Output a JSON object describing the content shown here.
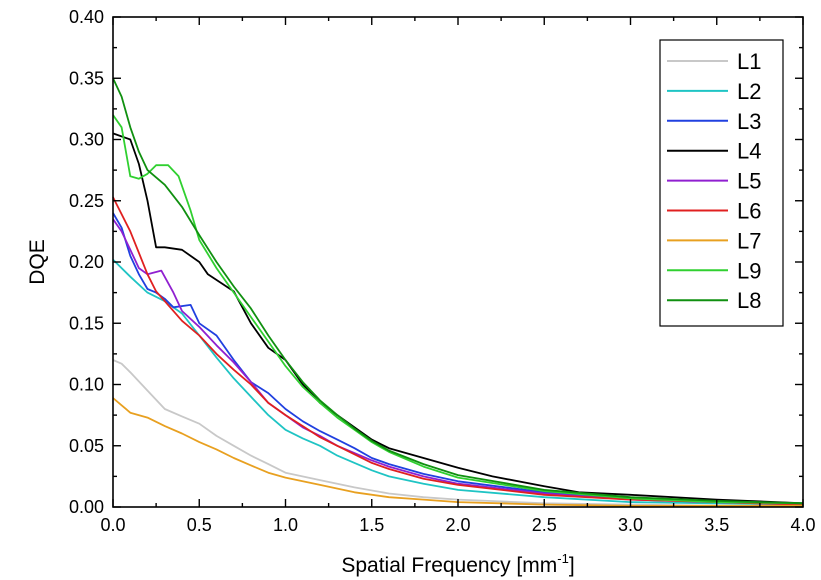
{
  "chart_data": {
    "type": "line",
    "title": "",
    "xlabel": "Spatial Frequency [mm",
    "xlabel_sup": "-1",
    "xlabel_end": "]",
    "ylabel": "DQE",
    "xlim": [
      0,
      4.0
    ],
    "ylim": [
      0,
      0.4
    ],
    "x_ticks": [
      "0.0",
      "0.5",
      "1.0",
      "1.5",
      "2.0",
      "2.5",
      "3.0",
      "3.5",
      "4.0"
    ],
    "y_ticks": [
      "0.00",
      "0.05",
      "0.10",
      "0.15",
      "0.20",
      "0.25",
      "0.30",
      "0.35",
      "0.40"
    ],
    "grid": false,
    "legend_position": "top-right",
    "series": [
      {
        "name": "L1",
        "color": "#c8c8c8",
        "points": [
          [
            0,
            0.12
          ],
          [
            0.05,
            0.117
          ],
          [
            0.1,
            0.11
          ],
          [
            0.2,
            0.095
          ],
          [
            0.3,
            0.08
          ],
          [
            0.4,
            0.074
          ],
          [
            0.5,
            0.068
          ],
          [
            0.6,
            0.058
          ],
          [
            0.7,
            0.05
          ],
          [
            0.8,
            0.042
          ],
          [
            0.9,
            0.035
          ],
          [
            1.0,
            0.028
          ],
          [
            1.2,
            0.022
          ],
          [
            1.4,
            0.016
          ],
          [
            1.6,
            0.011
          ],
          [
            1.8,
            0.008
          ],
          [
            2.0,
            0.006
          ],
          [
            2.5,
            0.003
          ],
          [
            3.0,
            0.002
          ],
          [
            3.5,
            0.001
          ],
          [
            4.0,
            0.001
          ]
        ]
      },
      {
        "name": "L2",
        "color": "#1fc4c4",
        "points": [
          [
            0,
            0.202
          ],
          [
            0.1,
            0.188
          ],
          [
            0.2,
            0.175
          ],
          [
            0.3,
            0.168
          ],
          [
            0.4,
            0.158
          ],
          [
            0.5,
            0.14
          ],
          [
            0.6,
            0.122
          ],
          [
            0.7,
            0.105
          ],
          [
            0.8,
            0.09
          ],
          [
            0.9,
            0.075
          ],
          [
            1.0,
            0.063
          ],
          [
            1.1,
            0.056
          ],
          [
            1.2,
            0.05
          ],
          [
            1.3,
            0.042
          ],
          [
            1.4,
            0.036
          ],
          [
            1.5,
            0.03
          ],
          [
            1.6,
            0.025
          ],
          [
            1.8,
            0.019
          ],
          [
            2.0,
            0.014
          ],
          [
            2.5,
            0.008
          ],
          [
            3.0,
            0.004
          ],
          [
            3.5,
            0.003
          ],
          [
            4.0,
            0.002
          ]
        ]
      },
      {
        "name": "L3",
        "color": "#2040e0",
        "points": [
          [
            0,
            0.24
          ],
          [
            0.05,
            0.228
          ],
          [
            0.1,
            0.205
          ],
          [
            0.15,
            0.19
          ],
          [
            0.2,
            0.178
          ],
          [
            0.25,
            0.175
          ],
          [
            0.3,
            0.17
          ],
          [
            0.35,
            0.163
          ],
          [
            0.45,
            0.165
          ],
          [
            0.5,
            0.15
          ],
          [
            0.6,
            0.14
          ],
          [
            0.7,
            0.12
          ],
          [
            0.8,
            0.102
          ],
          [
            0.9,
            0.093
          ],
          [
            1.0,
            0.08
          ],
          [
            1.1,
            0.07
          ],
          [
            1.2,
            0.062
          ],
          [
            1.3,
            0.055
          ],
          [
            1.4,
            0.048
          ],
          [
            1.5,
            0.04
          ],
          [
            1.6,
            0.035
          ],
          [
            1.8,
            0.027
          ],
          [
            2.0,
            0.021
          ],
          [
            2.5,
            0.012
          ],
          [
            3.0,
            0.007
          ],
          [
            3.5,
            0.004
          ],
          [
            4.0,
            0.003
          ]
        ]
      },
      {
        "name": "L4",
        "color": "#000000",
        "points": [
          [
            0,
            0.305
          ],
          [
            0.1,
            0.3
          ],
          [
            0.15,
            0.28
          ],
          [
            0.2,
            0.25
          ],
          [
            0.25,
            0.212
          ],
          [
            0.3,
            0.212
          ],
          [
            0.4,
            0.21
          ],
          [
            0.5,
            0.2
          ],
          [
            0.55,
            0.19
          ],
          [
            0.7,
            0.176
          ],
          [
            0.8,
            0.15
          ],
          [
            0.9,
            0.13
          ],
          [
            1.0,
            0.12
          ],
          [
            1.1,
            0.1
          ],
          [
            1.2,
            0.085
          ],
          [
            1.3,
            0.075
          ],
          [
            1.4,
            0.065
          ],
          [
            1.5,
            0.055
          ],
          [
            1.6,
            0.048
          ],
          [
            1.8,
            0.04
          ],
          [
            2.0,
            0.032
          ],
          [
            2.2,
            0.025
          ],
          [
            2.5,
            0.017
          ],
          [
            2.7,
            0.012
          ],
          [
            3.0,
            0.01
          ],
          [
            3.5,
            0.006
          ],
          [
            4.0,
            0.003
          ]
        ]
      },
      {
        "name": "L5",
        "color": "#9020d0",
        "points": [
          [
            0,
            0.235
          ],
          [
            0.05,
            0.225
          ],
          [
            0.1,
            0.21
          ],
          [
            0.15,
            0.195
          ],
          [
            0.2,
            0.19
          ],
          [
            0.28,
            0.193
          ],
          [
            0.35,
            0.175
          ],
          [
            0.4,
            0.16
          ],
          [
            0.5,
            0.147
          ],
          [
            0.6,
            0.132
          ],
          [
            0.7,
            0.118
          ],
          [
            0.8,
            0.102
          ],
          [
            0.9,
            0.085
          ],
          [
            1.0,
            0.075
          ],
          [
            1.1,
            0.065
          ],
          [
            1.2,
            0.058
          ],
          [
            1.3,
            0.05
          ],
          [
            1.4,
            0.044
          ],
          [
            1.5,
            0.038
          ],
          [
            1.6,
            0.033
          ],
          [
            1.8,
            0.025
          ],
          [
            2.0,
            0.019
          ],
          [
            2.5,
            0.011
          ],
          [
            3.0,
            0.006
          ],
          [
            3.5,
            0.004
          ],
          [
            4.0,
            0.002
          ]
        ]
      },
      {
        "name": "L6",
        "color": "#e02020",
        "points": [
          [
            0,
            0.253
          ],
          [
            0.1,
            0.225
          ],
          [
            0.2,
            0.19
          ],
          [
            0.25,
            0.176
          ],
          [
            0.3,
            0.168
          ],
          [
            0.4,
            0.152
          ],
          [
            0.5,
            0.14
          ],
          [
            0.6,
            0.125
          ],
          [
            0.7,
            0.112
          ],
          [
            0.8,
            0.1
          ],
          [
            0.9,
            0.085
          ],
          [
            1.0,
            0.075
          ],
          [
            1.1,
            0.066
          ],
          [
            1.2,
            0.057
          ],
          [
            1.3,
            0.05
          ],
          [
            1.4,
            0.043
          ],
          [
            1.5,
            0.036
          ],
          [
            1.6,
            0.031
          ],
          [
            1.8,
            0.023
          ],
          [
            2.0,
            0.018
          ],
          [
            2.5,
            0.01
          ],
          [
            3.0,
            0.006
          ],
          [
            3.5,
            0.004
          ],
          [
            4.0,
            0.002
          ]
        ]
      },
      {
        "name": "L7",
        "color": "#e8a020",
        "points": [
          [
            0,
            0.089
          ],
          [
            0.05,
            0.083
          ],
          [
            0.1,
            0.077
          ],
          [
            0.2,
            0.073
          ],
          [
            0.3,
            0.066
          ],
          [
            0.4,
            0.06
          ],
          [
            0.5,
            0.053
          ],
          [
            0.6,
            0.047
          ],
          [
            0.7,
            0.04
          ],
          [
            0.8,
            0.034
          ],
          [
            0.9,
            0.028
          ],
          [
            1.0,
            0.024
          ],
          [
            1.2,
            0.018
          ],
          [
            1.4,
            0.012
          ],
          [
            1.6,
            0.008
          ],
          [
            1.8,
            0.006
          ],
          [
            2.0,
            0.004
          ],
          [
            2.5,
            0.002
          ],
          [
            3.0,
            0.001
          ],
          [
            3.5,
            0.001
          ],
          [
            4.0,
            0.001
          ]
        ]
      },
      {
        "name": "L9",
        "color": "#30d030",
        "points": [
          [
            0,
            0.32
          ],
          [
            0.05,
            0.31
          ],
          [
            0.1,
            0.27
          ],
          [
            0.15,
            0.268
          ],
          [
            0.2,
            0.272
          ],
          [
            0.25,
            0.279
          ],
          [
            0.32,
            0.279
          ],
          [
            0.38,
            0.27
          ],
          [
            0.45,
            0.242
          ],
          [
            0.5,
            0.218
          ],
          [
            0.6,
            0.195
          ],
          [
            0.7,
            0.175
          ],
          [
            0.8,
            0.155
          ],
          [
            0.9,
            0.135
          ],
          [
            1.0,
            0.115
          ],
          [
            1.1,
            0.098
          ],
          [
            1.2,
            0.085
          ],
          [
            1.3,
            0.073
          ],
          [
            1.4,
            0.063
          ],
          [
            1.5,
            0.053
          ],
          [
            1.6,
            0.045
          ],
          [
            1.8,
            0.033
          ],
          [
            2.0,
            0.024
          ],
          [
            2.5,
            0.013
          ],
          [
            3.0,
            0.007
          ],
          [
            3.5,
            0.004
          ],
          [
            4.0,
            0.003
          ]
        ]
      },
      {
        "name": "L8",
        "color": "#109010",
        "points": [
          [
            0,
            0.35
          ],
          [
            0.05,
            0.335
          ],
          [
            0.1,
            0.31
          ],
          [
            0.15,
            0.29
          ],
          [
            0.2,
            0.275
          ],
          [
            0.3,
            0.263
          ],
          [
            0.4,
            0.245
          ],
          [
            0.5,
            0.222
          ],
          [
            0.6,
            0.2
          ],
          [
            0.7,
            0.18
          ],
          [
            0.8,
            0.162
          ],
          [
            0.9,
            0.14
          ],
          [
            1.0,
            0.12
          ],
          [
            1.1,
            0.102
          ],
          [
            1.2,
            0.087
          ],
          [
            1.3,
            0.075
          ],
          [
            1.4,
            0.064
          ],
          [
            1.5,
            0.054
          ],
          [
            1.6,
            0.046
          ],
          [
            1.8,
            0.035
          ],
          [
            2.0,
            0.026
          ],
          [
            2.5,
            0.014
          ],
          [
            3.0,
            0.008
          ],
          [
            3.5,
            0.005
          ],
          [
            4.0,
            0.003
          ]
        ]
      }
    ]
  }
}
